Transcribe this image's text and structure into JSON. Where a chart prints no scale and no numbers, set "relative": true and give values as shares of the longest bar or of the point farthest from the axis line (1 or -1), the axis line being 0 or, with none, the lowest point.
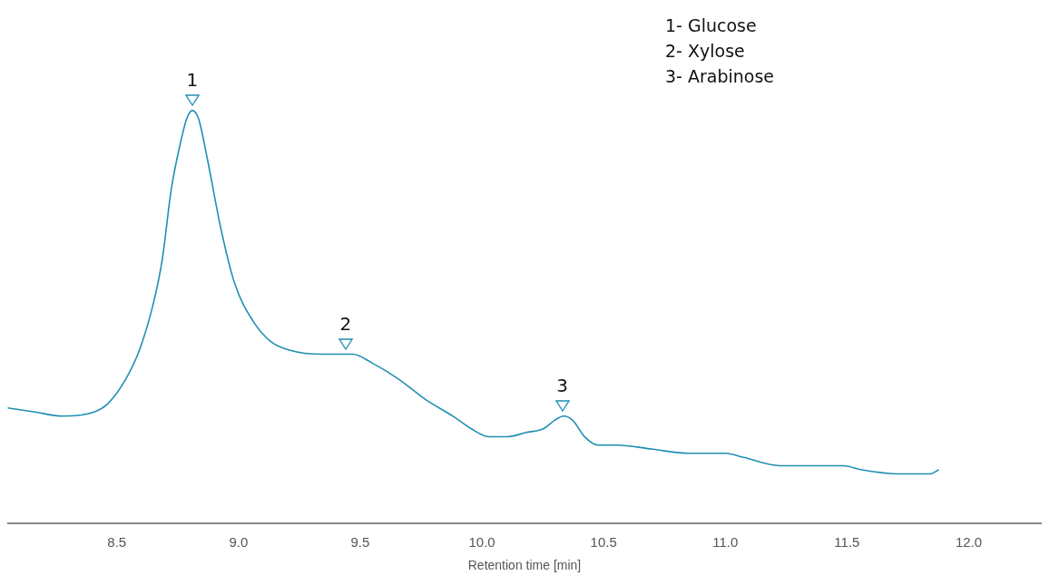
{
  "chart_data": {
    "type": "line",
    "relative": true,
    "xlabel": "Retention time [min]",
    "xlim": [
      8.05,
      12.3
    ],
    "xticks": [
      {
        "value": 8.5,
        "label": "8.5"
      },
      {
        "value": 9,
        "label": "9.0"
      },
      {
        "value": 9.5,
        "label": "9.5"
      },
      {
        "value": 10,
        "label": "10.0"
      },
      {
        "value": 10.5,
        "label": "10.5"
      },
      {
        "value": 11,
        "label": "11.0"
      },
      {
        "value": 11.5,
        "label": "11.5"
      },
      {
        "value": 12,
        "label": "12.0"
      }
    ],
    "tick_labels": "x",
    "grid": false,
    "legend": false,
    "marker": "none",
    "line_style": "solid",
    "series": [
      {
        "color": "#1f8fb4",
        "x": [
          8.052,
          8.164,
          8.276,
          8.407,
          8.463,
          8.537,
          8.593,
          8.649,
          8.687,
          8.724,
          8.761,
          8.787,
          8.81,
          8.836,
          8.873,
          8.929,
          8.985,
          9.06,
          9.134,
          9.209,
          9.34,
          9.47,
          9.545,
          9.657,
          9.769,
          9.881,
          9.955,
          10.03,
          10.104,
          10.179,
          10.254,
          10.299,
          10.336,
          10.373,
          10.422,
          10.478,
          10.552,
          10.701,
          10.851,
          11.0,
          11.075,
          11.224,
          11.373,
          11.485,
          11.56,
          11.709,
          11.784,
          11.84,
          11.877
        ],
        "values": [
          0.28,
          0.27,
          0.26,
          0.27,
          0.29,
          0.35,
          0.42,
          0.53,
          0.64,
          0.81,
          0.92,
          0.98,
          1,
          0.98,
          0.88,
          0.71,
          0.58,
          0.49,
          0.44,
          0.42,
          0.41,
          0.41,
          0.39,
          0.35,
          0.3,
          0.26,
          0.23,
          0.21,
          0.21,
          0.22,
          0.23,
          0.25,
          0.26,
          0.25,
          0.21,
          0.19,
          0.19,
          0.18,
          0.17,
          0.17,
          0.16,
          0.14,
          0.14,
          0.14,
          0.13,
          0.12,
          0.12,
          0.12,
          0.13
        ]
      }
    ],
    "annotations": [
      {
        "text": "1",
        "x": 8.81,
        "y": 1
      },
      {
        "text": "2",
        "x": 9.44,
        "y": 0.41
      },
      {
        "text": "3",
        "x": 10.33,
        "y": 0.26
      },
      "1- Glucose",
      "2- Xylose",
      "3- Arabinose"
    ]
  }
}
